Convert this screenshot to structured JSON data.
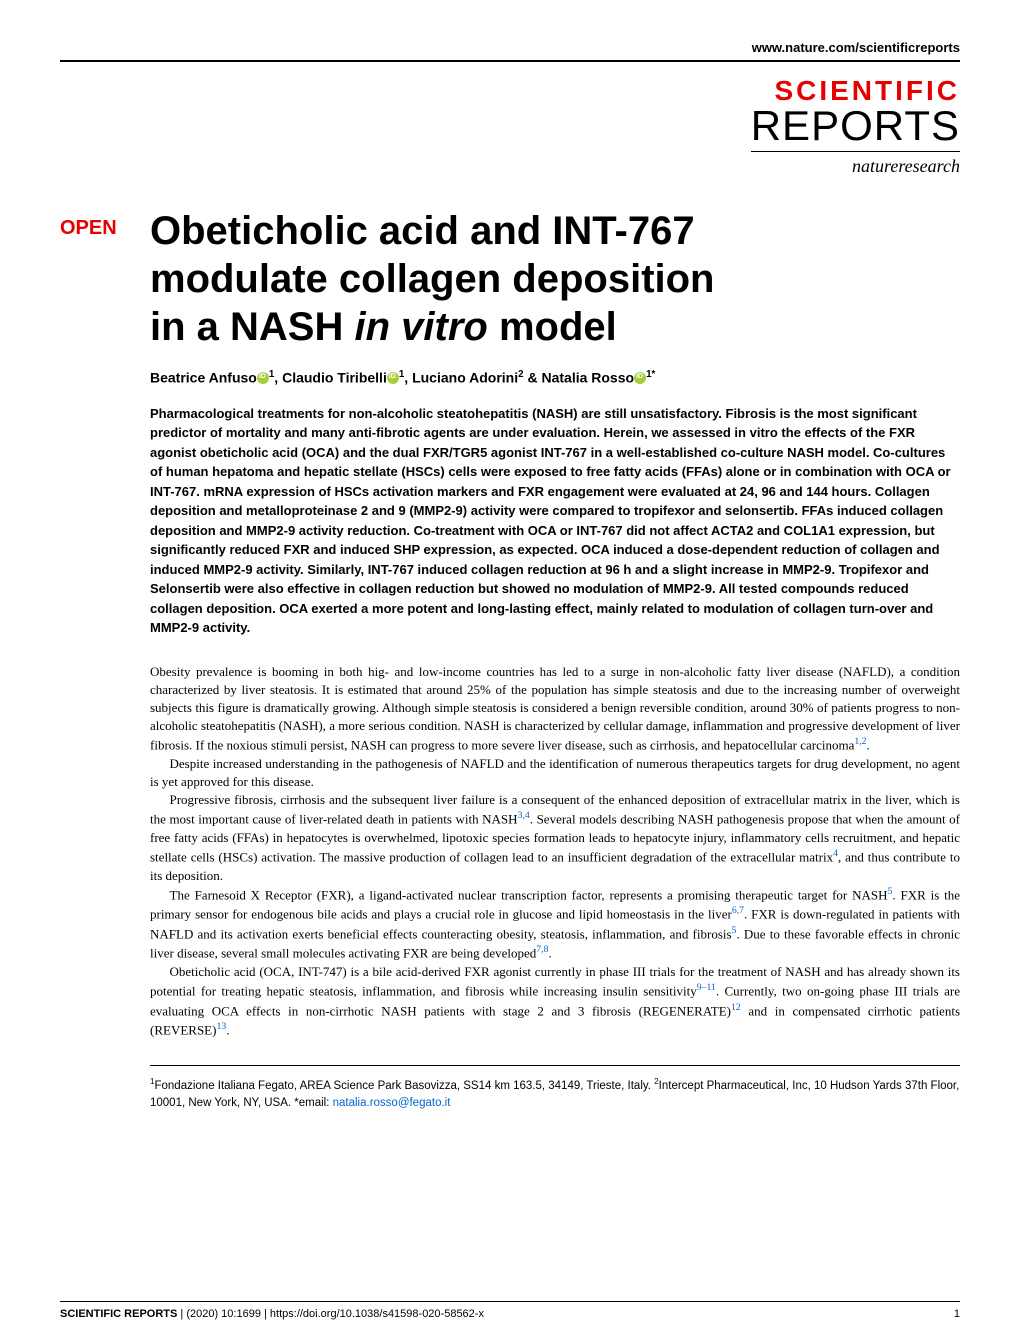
{
  "header": {
    "website": "www.nature.com/scientificreports",
    "journal_top": "SCIENTIFIC",
    "journal_bottom": "REPORTS",
    "publisher": "natureresearch"
  },
  "badge": "OPEN",
  "title_line1": "Obeticholic acid and INT-767",
  "title_line2": "modulate collagen deposition",
  "title_line3_a": "in a NASH ",
  "title_line3_b": "in vitro",
  "title_line3_c": " model",
  "authors": {
    "a1_name": "Beatrice Anfuso",
    "a1_aff": "1",
    "a2_name": "Claudio Tiribelli",
    "a2_aff": "1",
    "a3_name": "Luciano Adorini",
    "a3_aff": "2",
    "a4_name": "Natalia Rosso",
    "a4_aff": "1*"
  },
  "abstract": "Pharmacological treatments for non-alcoholic steatohepatitis (NASH) are still unsatisfactory. Fibrosis is the most significant predictor of mortality and many anti-fibrotic agents are under evaluation. Herein, we assessed in vitro the effects of the FXR agonist obeticholic acid (OCA) and the dual FXR/TGR5 agonist INT-767 in a well-established co-culture NASH model. Co-cultures of human hepatoma and hepatic stellate (HSCs) cells were exposed to free fatty acids (FFAs) alone or in combination with OCA or INT-767. mRNA expression of HSCs activation markers and FXR engagement were evaluated at 24, 96 and 144 hours. Collagen deposition and metalloproteinase 2 and 9 (MMP2-9) activity were compared to tropifexor and selonsertib. FFAs induced collagen deposition and MMP2-9 activity reduction. Co-treatment with OCA or INT-767 did not affect ACTA2 and COL1A1 expression, but significantly reduced FXR and induced SHP expression, as expected. OCA induced a dose-dependent reduction of collagen and induced MMP2-9 activity. Similarly, INT-767 induced collagen reduction at 96 h and a slight increase in MMP2-9. Tropifexor and Selonsertib were also effective in collagen reduction but showed no modulation of MMP2-9. All tested compounds reduced collagen deposition. OCA exerted a more potent and long-lasting effect, mainly related to modulation of collagen turn-over and MMP2-9 activity.",
  "body": {
    "p1": "Obesity prevalence is booming in both hig- and low-income countries has led to a surge in non-alcoholic fatty liver disease (NAFLD), a condition characterized by liver steatosis. It is estimated that around 25% of the population has simple steatosis and due to the increasing number of overweight subjects this figure is dramatically growing. Although simple steatosis is considered a benign reversible condition, around 30% of patients progress to non-alcoholic steatohepatitis (NASH), a more serious condition. NASH is characterized by cellular damage, inflammation and progressive development of liver fibrosis. If the noxious stimuli persist, NASH can progress to more severe liver disease, such as cirrhosis, and hepatocellular carcinoma",
    "p1_ref": "1,2",
    "p1_end": ".",
    "p2": "Despite increased understanding in the pathogenesis of NAFLD and the identification of numerous therapeutics targets for drug development, no agent is yet approved for this disease.",
    "p3": "Progressive fibrosis, cirrhosis and the subsequent liver failure is a consequent of the enhanced deposition of extracellular matrix in the liver, which is the most important cause of liver-related death in patients with NASH",
    "p3_ref": "3,4",
    "p3_mid": ". Several models describing NASH pathogenesis propose that when the amount of free fatty acids (FFAs) in hepatocytes is overwhelmed, lipotoxic species formation leads to hepatocyte injury, inflammatory cells recruitment, and hepatic stellate cells (HSCs) activation. The massive production of collagen lead to an insufficient degradation of the extracellular matrix",
    "p3_ref2": "4",
    "p3_end": ", and thus contribute to its deposition.",
    "p4": "The Farnesoid X Receptor (FXR), a ligand-activated nuclear transcription factor, represents a promising therapeutic target for NASH",
    "p4_ref": "5",
    "p4_mid": ". FXR is the primary sensor for endogenous bile acids and plays a crucial role in glucose and lipid homeostasis in the liver",
    "p4_ref2": "6,7",
    "p4_mid2": ". FXR is down-regulated in patients with NAFLD and its activation exerts beneficial effects counteracting obesity, steatosis, inflammation, and fibrosis",
    "p4_ref3": "5",
    "p4_mid3": ". Due to these favorable effects in chronic liver disease, several small molecules activating FXR are being developed",
    "p4_ref4": "7,8",
    "p4_end": ".",
    "p5": "Obeticholic acid (OCA, INT-747) is a bile acid-derived FXR agonist currently in phase III trials for the treatment of NASH and has already shown its potential for treating hepatic steatosis, inflammation, and fibrosis while increasing insulin sensitivity",
    "p5_ref": "9–11",
    "p5_mid": ". Currently, two on-going phase III trials are evaluating OCA effects in non-cirrhotic NASH patients with stage 2 and 3 fibrosis (REGENERATE)",
    "p5_ref2": "12",
    "p5_mid2": " and in compensated cirrhotic patients (REVERSE)",
    "p5_ref3": "13",
    "p5_end": "."
  },
  "affiliations": {
    "aff1_num": "1",
    "aff1": "Fondazione Italiana Fegato, AREA Science Park Basovizza, SS14 km 163.5, 34149, Trieste, Italy. ",
    "aff2_num": "2",
    "aff2": "Intercept Pharmaceutical, Inc, 10 Hudson Yards 37th Floor, 10001, New York, NY, USA. *email: ",
    "email": "natalia.rosso@fegato.it"
  },
  "footer": {
    "journal": "SCIENTIFIC REPORTS",
    "citation": "(2020) 10:1699 | https://doi.org/10.1038/s41598-020-58562-x",
    "page": "1"
  },
  "colors": {
    "red": "#e60000",
    "link": "#0066cc",
    "orcid": "#a6ce39"
  }
}
